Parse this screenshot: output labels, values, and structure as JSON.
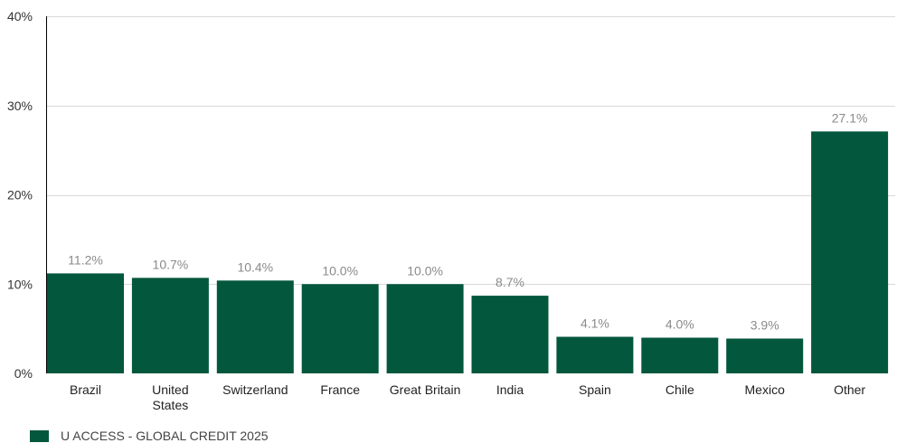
{
  "chart_data": {
    "type": "bar",
    "categories": [
      "Brazil",
      "United States",
      "Switzerland",
      "France",
      "Great Britain",
      "India",
      "Spain",
      "Chile",
      "Mexico",
      "Other"
    ],
    "category_lines": [
      [
        "Brazil"
      ],
      [
        "United",
        "States"
      ],
      [
        "Switzerland"
      ],
      [
        "France"
      ],
      [
        "Great Britain"
      ],
      [
        "India"
      ],
      [
        "Spain"
      ],
      [
        "Chile"
      ],
      [
        "Mexico"
      ],
      [
        "Other"
      ]
    ],
    "series": [
      {
        "name": "U ACCESS - GLOBAL CREDIT 2025",
        "values": [
          11.2,
          10.7,
          10.4,
          10.0,
          10.0,
          8.7,
          4.1,
          4.0,
          3.9,
          27.1
        ],
        "data_labels": [
          "11.2%",
          "10.7%",
          "10.4%",
          "10.0%",
          "10.0%",
          "8.7%",
          "4.1%",
          "4.0%",
          "3.9%",
          "27.1%"
        ],
        "color": "#03573C"
      }
    ],
    "ylim": [
      0,
      40
    ],
    "yticks": [
      0,
      10,
      20,
      30,
      40
    ],
    "ytick_labels": [
      "0%",
      "10%",
      "20%",
      "30%",
      "40%"
    ],
    "grid": true,
    "legend_position": "bottom-left"
  },
  "colors": {
    "bar": "#03573C",
    "grid": "#d9d9d9",
    "axis": "#000000"
  }
}
